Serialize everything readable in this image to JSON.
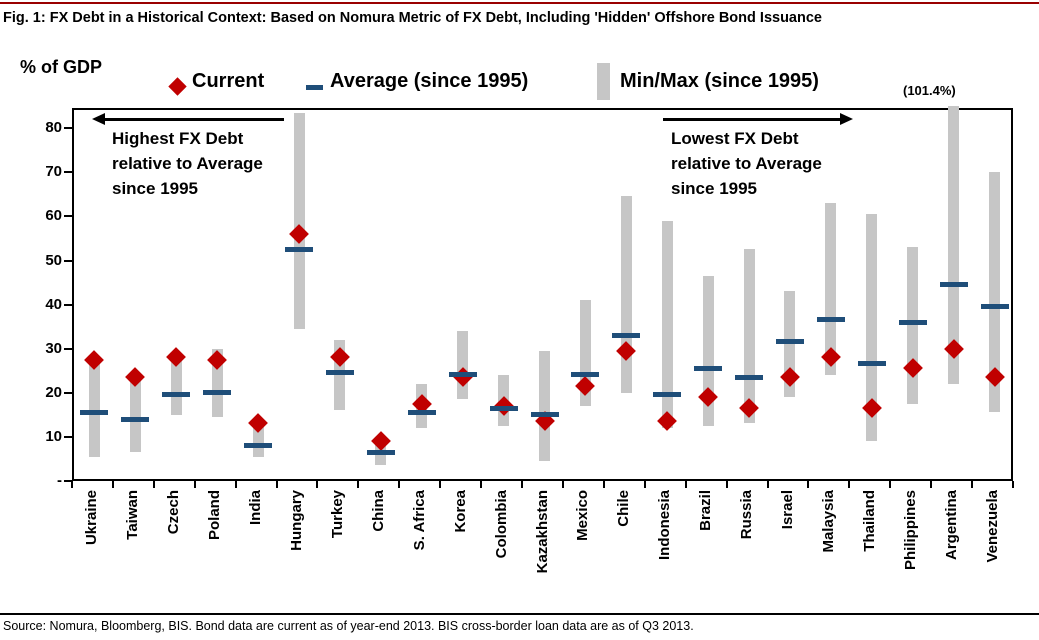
{
  "title": "Fig. 1: FX Debt in a Historical Context: Based on Nomura Metric of FX Debt, Including 'Hidden' Offshore Bond Issuance",
  "y_axis_label": "% of GDP",
  "legend": {
    "current_label": "Current",
    "average_label": "Average (since 1995)",
    "minmax_label": "Min/Max (since 1995)"
  },
  "annotations": {
    "left": {
      "lines": [
        "Highest  FX Debt",
        "relative to Average",
        "since 1995"
      ]
    },
    "right": {
      "lines": [
        "Lowest FX Debt",
        "relative to Average",
        "since 1995"
      ]
    },
    "argentina_max_label": "(101.4%)"
  },
  "source": "Source: Nomura, Bloomberg, BIS. Bond data are current as of year-end 2013. BIS cross-border loan data are as of Q3 2013.",
  "colors": {
    "current": "#c00000",
    "average": "#1f4e79",
    "minmax": "#c6c6c6",
    "top_rule": "#990000"
  },
  "chart_data": {
    "type": "range-bar-with-markers",
    "title": "FX Debt in a Historical Context (% of GDP)",
    "ylabel": "% of GDP",
    "categories": [
      "Ukraine",
      "Taiwan",
      "Czech",
      "Poland",
      "India",
      "Hungary",
      "Turkey",
      "China",
      "S. Africa",
      "Korea",
      "Colombia",
      "Kazakhstan",
      "Mexico",
      "Chile",
      "Indonesia",
      "Brazil",
      "Russia",
      "Israel",
      "Malaysia",
      "Thailand",
      "Philippines",
      "Argentina",
      "Venezuela"
    ],
    "series": [
      {
        "name": "Current",
        "marker": "diamond",
        "values": [
          28,
          24,
          28.5,
          28,
          13.5,
          56.5,
          28.5,
          9.5,
          18,
          24,
          17.5,
          14,
          22,
          30,
          14,
          19.5,
          17,
          24,
          28.5,
          17,
          26,
          30.5,
          24
        ]
      },
      {
        "name": "Average (since 1995)",
        "marker": "dash",
        "values": [
          16,
          14.5,
          20,
          20.5,
          8.5,
          53,
          25,
          7,
          16,
          24.5,
          17,
          15.5,
          24.5,
          33.5,
          20,
          26,
          24,
          32,
          37,
          27,
          36.5,
          45,
          40
        ]
      },
      {
        "name": "Min (since 1995)",
        "marker": "range-low",
        "values": [
          6,
          7,
          15.5,
          15,
          6,
          35,
          16.5,
          4,
          12.5,
          19,
          13,
          5,
          17.5,
          20.5,
          12.5,
          13,
          13.5,
          19.5,
          24.5,
          9.5,
          18,
          22.5,
          16
        ]
      },
      {
        "name": "Max (since 1995)",
        "marker": "range-high",
        "values": [
          28,
          24.5,
          29,
          30.5,
          14,
          84,
          32.5,
          10,
          22.5,
          34.5,
          24.5,
          30,
          41.5,
          65,
          59.5,
          47,
          53,
          43.5,
          63.5,
          61,
          53.5,
          101.4,
          70.5
        ]
      }
    ],
    "ylim": [
      0,
      84.6
    ],
    "ytick_values": [
      0,
      10,
      20,
      30,
      40,
      50,
      60,
      70,
      80
    ],
    "ytick_labels": [
      "-",
      "10",
      "20",
      "30",
      "40",
      "50",
      "60",
      "70",
      "80"
    ],
    "grid": false,
    "legend_position": "top",
    "note": "Argentina max bar exceeds axis top; value labeled (101.4%)"
  }
}
